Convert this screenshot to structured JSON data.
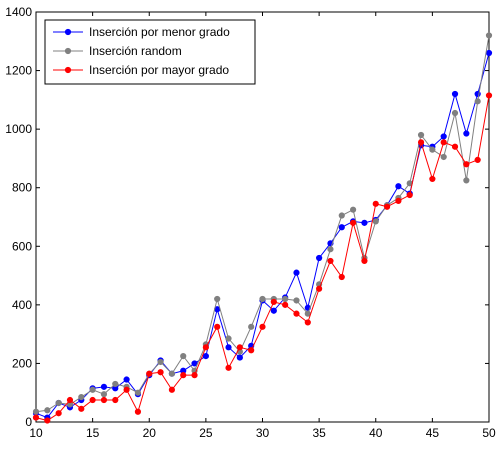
{
  "chart_data": {
    "type": "line",
    "title": "",
    "xlabel": "",
    "ylabel": "",
    "xlim": [
      10,
      50
    ],
    "ylim": [
      0,
      1400
    ],
    "xticks": [
      10,
      15,
      20,
      25,
      30,
      35,
      40,
      45,
      50
    ],
    "yticks": [
      0,
      200,
      400,
      600,
      800,
      1000,
      1200,
      1400
    ],
    "grid": false,
    "legend_position": "top-left",
    "x": [
      10,
      11,
      12,
      13,
      14,
      15,
      16,
      17,
      18,
      19,
      20,
      21,
      22,
      23,
      24,
      25,
      26,
      27,
      28,
      29,
      30,
      31,
      32,
      33,
      34,
      35,
      36,
      37,
      38,
      39,
      40,
      41,
      42,
      43,
      44,
      45,
      46,
      47,
      48,
      49,
      50
    ],
    "series": [
      {
        "name": "Inserción por menor grado",
        "color": "#0000ff",
        "values": [
          30,
          15,
          65,
          50,
          75,
          115,
          120,
          115,
          145,
          95,
          160,
          210,
          165,
          175,
          200,
          225,
          385,
          255,
          220,
          260,
          415,
          380,
          425,
          510,
          390,
          560,
          610,
          665,
          685,
          680,
          690,
          740,
          805,
          780,
          945,
          940,
          975,
          1120,
          985,
          1120,
          1260
        ]
      },
      {
        "name": "Inserción random",
        "color": "#808080",
        "values": [
          35,
          40,
          65,
          60,
          85,
          110,
          95,
          130,
          120,
          100,
          165,
          205,
          165,
          225,
          175,
          265,
          420,
          285,
          240,
          325,
          420,
          420,
          420,
          415,
          370,
          470,
          590,
          705,
          725,
          560,
          685,
          740,
          765,
          815,
          980,
          930,
          905,
          1055,
          825,
          1095,
          1320
        ]
      },
      {
        "name": "Inserción por mayor grado",
        "color": "#ff0000",
        "values": [
          15,
          5,
          30,
          75,
          45,
          75,
          75,
          75,
          110,
          35,
          165,
          170,
          110,
          160,
          160,
          255,
          325,
          185,
          255,
          245,
          325,
          410,
          400,
          370,
          340,
          455,
          550,
          495,
          680,
          550,
          745,
          735,
          755,
          775,
          955,
          830,
          955,
          940,
          880,
          895,
          1115
        ]
      }
    ]
  }
}
